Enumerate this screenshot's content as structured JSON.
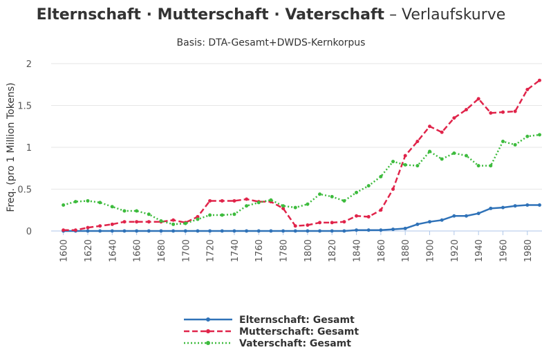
{
  "chart_data": {
    "type": "line",
    "title": {
      "main": "Elternschaft · Mutterschaft · Vaterschaft",
      "suffix": "– Verlaufskurve"
    },
    "subtitle": "Basis: DTA-Gesamt+DWDS-Kernkorpus",
    "y_label": "Freq. (pro 1 Million Tokens)",
    "x": [
      1600,
      1610,
      1620,
      1630,
      1640,
      1650,
      1660,
      1670,
      1680,
      1690,
      1700,
      1710,
      1720,
      1730,
      1740,
      1750,
      1760,
      1770,
      1780,
      1790,
      1800,
      1810,
      1820,
      1830,
      1840,
      1850,
      1860,
      1870,
      1880,
      1890,
      1900,
      1910,
      1920,
      1930,
      1940,
      1950,
      1960,
      1970,
      1980,
      1990
    ],
    "xlim": [
      1590,
      1992
    ],
    "xticks": [
      1600,
      1620,
      1640,
      1660,
      1680,
      1700,
      1720,
      1740,
      1760,
      1780,
      1800,
      1820,
      1840,
      1860,
      1880,
      1900,
      1920,
      1940,
      1960,
      1980
    ],
    "ylim": [
      0,
      2
    ],
    "yticks": [
      0,
      0.5,
      1,
      1.5,
      2
    ],
    "grid": true,
    "legend": "bottom",
    "series": [
      {
        "name": "Elternschaft: Gesamt",
        "color": "#2f72b8",
        "dash": "solid",
        "values": [
          0,
          0,
          0,
          0,
          0,
          0,
          0,
          0,
          0,
          0,
          0,
          0,
          0,
          0,
          0,
          0,
          0,
          0,
          0,
          0,
          0,
          0,
          0,
          0,
          0.01,
          0.01,
          0.01,
          0.02,
          0.03,
          0.08,
          0.11,
          0.13,
          0.18,
          0.18,
          0.21,
          0.27,
          0.28,
          0.3,
          0.31,
          0.31
        ]
      },
      {
        "name": "Mutterschaft: Gesamt",
        "color": "#e0244a",
        "dash": "dashed",
        "values": [
          0.01,
          0.01,
          0.04,
          0.06,
          0.08,
          0.11,
          0.11,
          0.11,
          0.11,
          0.13,
          0.1,
          0.17,
          0.36,
          0.36,
          0.36,
          0.38,
          0.35,
          0.35,
          0.27,
          0.06,
          0.07,
          0.1,
          0.1,
          0.11,
          0.18,
          0.17,
          0.25,
          0.5,
          0.9,
          1.07,
          1.25,
          1.18,
          1.35,
          1.45,
          1.58,
          1.41,
          1.42,
          1.43,
          1.69,
          1.8
        ]
      },
      {
        "name": "Vaterschaft: Gesamt",
        "color": "#3dbb3d",
        "dash": "dotted",
        "values": [
          0.31,
          0.35,
          0.36,
          0.34,
          0.29,
          0.24,
          0.24,
          0.2,
          0.12,
          0.08,
          0.09,
          0.14,
          0.19,
          0.19,
          0.2,
          0.3,
          0.34,
          0.37,
          0.3,
          0.28,
          0.32,
          0.44,
          0.41,
          0.36,
          0.46,
          0.54,
          0.65,
          0.83,
          0.79,
          0.78,
          0.95,
          0.86,
          0.93,
          0.9,
          0.78,
          0.78,
          1.07,
          1.03,
          1.13,
          1.15
        ]
      }
    ]
  }
}
